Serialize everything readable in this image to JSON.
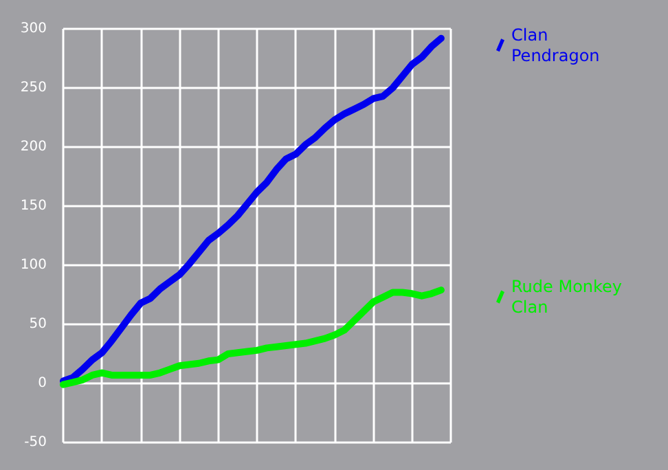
{
  "chart_data": {
    "type": "line",
    "categories": [
      null,
      null,
      null,
      null,
      null,
      null,
      null,
      null,
      null,
      null,
      null,
      null,
      null,
      null,
      null,
      null,
      null,
      null,
      null,
      null,
      null,
      null,
      null,
      null,
      null,
      null,
      null,
      null,
      null,
      null,
      null,
      null,
      null,
      null,
      null,
      null,
      null,
      null,
      null,
      null,
      null
    ],
    "series": [
      {
        "name": "Clan Pendragon",
        "color": "#0000ee",
        "values": [
          2,
          5,
          12,
          20,
          26,
          36,
          47,
          58,
          68,
          72,
          80,
          86,
          92,
          101,
          111,
          121,
          127,
          134,
          142,
          152,
          162,
          170,
          181,
          190,
          194,
          202,
          208,
          216,
          223,
          228,
          232,
          236,
          241,
          243,
          250,
          260,
          270,
          276,
          285,
          292,
          null
        ]
      },
      {
        "name": "Rude Monkey Clan",
        "color": "#00ee00",
        "values": [
          -1,
          1,
          3,
          7,
          9,
          7,
          7,
          7,
          7,
          7,
          9,
          12,
          15,
          16,
          17,
          19,
          20,
          25,
          26,
          27,
          28,
          30,
          31,
          32,
          33,
          34,
          36,
          38,
          41,
          45,
          53,
          61,
          69,
          73,
          77,
          77,
          76,
          74,
          76,
          79,
          null
        ]
      }
    ],
    "ylim": [
      -50,
      300
    ],
    "yticks": [
      -50,
      0,
      50,
      100,
      150,
      200,
      250,
      300
    ],
    "grid": true,
    "legend": "right",
    "line_style": "solid",
    "tick_labels": "y"
  }
}
